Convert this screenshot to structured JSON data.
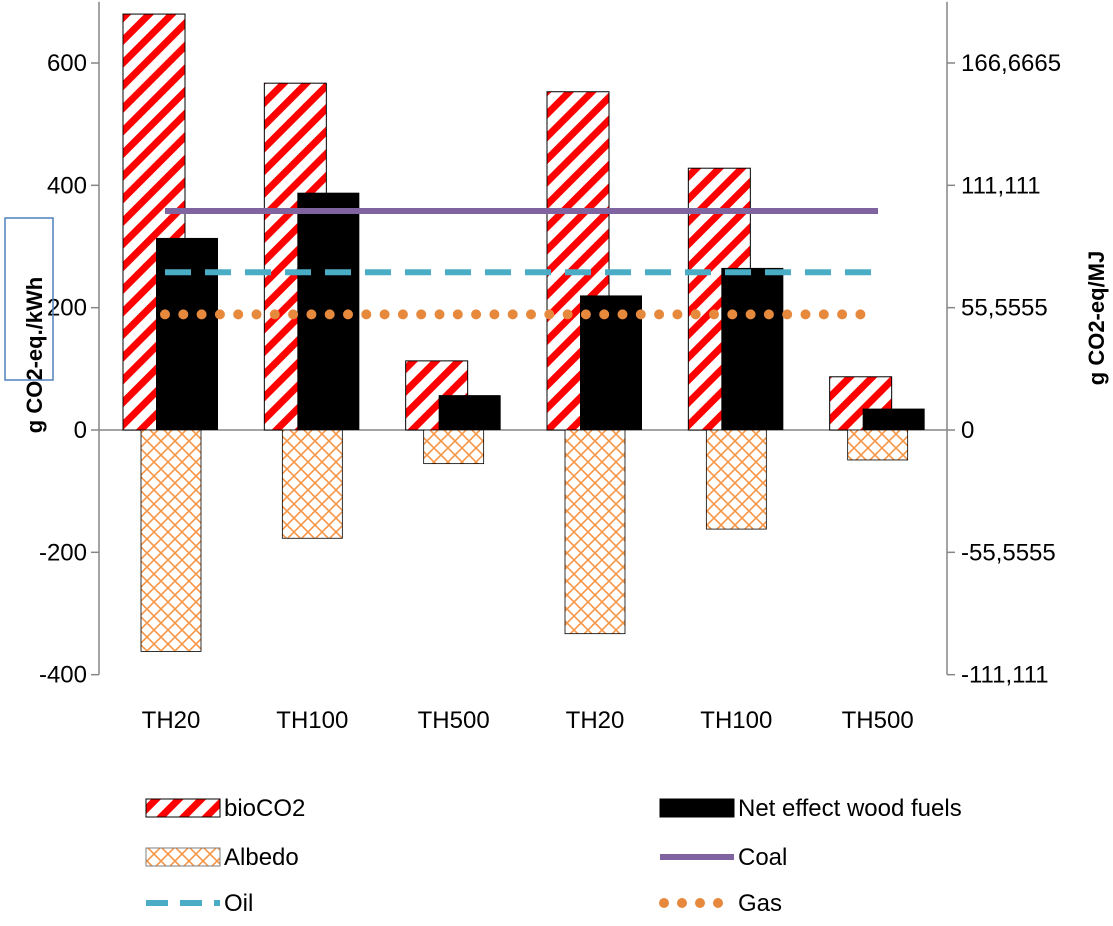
{
  "chart_data": {
    "type": "bar",
    "categories": [
      "TH20",
      "TH100",
      "TH500",
      "TH20",
      "TH100",
      "TH500"
    ],
    "ylabel": "g CO2-eq./kWh",
    "y2label": "g CO2-eq/MJ",
    "ylim": [
      -400,
      700
    ],
    "yticks": [
      600,
      400,
      200,
      0,
      -200,
      -400
    ],
    "y2ticks": [
      "166,6665",
      "111,111",
      "55,5555",
      "0",
      "-55,5555",
      "-111,111"
    ],
    "series": [
      {
        "name": "bioCO2",
        "kind": "bar",
        "pattern": "red-diagonal-stripes",
        "color": "#ff0000",
        "values": [
          680,
          567,
          113,
          553,
          428,
          87
        ]
      },
      {
        "name": "Net effect wood fuels",
        "kind": "bar",
        "pattern": "solid",
        "color": "#000000",
        "values": [
          314,
          388,
          57,
          220,
          265,
          35
        ]
      },
      {
        "name": "Albedo",
        "kind": "bar",
        "pattern": "orange-crosshatch",
        "color": "#f79646",
        "values": [
          -362,
          -177,
          -55,
          -333,
          -162,
          -49
        ]
      },
      {
        "name": "Coal",
        "kind": "line",
        "style": "solid",
        "color": "#8064a2",
        "value": 358
      },
      {
        "name": "Oil",
        "kind": "line",
        "style": "dashed",
        "color": "#4bacc6",
        "value": 258
      },
      {
        "name": "Gas",
        "kind": "line",
        "style": "dotted",
        "color": "#e7893d",
        "value": 189
      }
    ],
    "legend": {
      "placement": "bottom",
      "entries": [
        "bioCO2",
        "Net effect wood fuels",
        "Albedo",
        "Coal",
        "Oil",
        "Gas"
      ]
    }
  }
}
